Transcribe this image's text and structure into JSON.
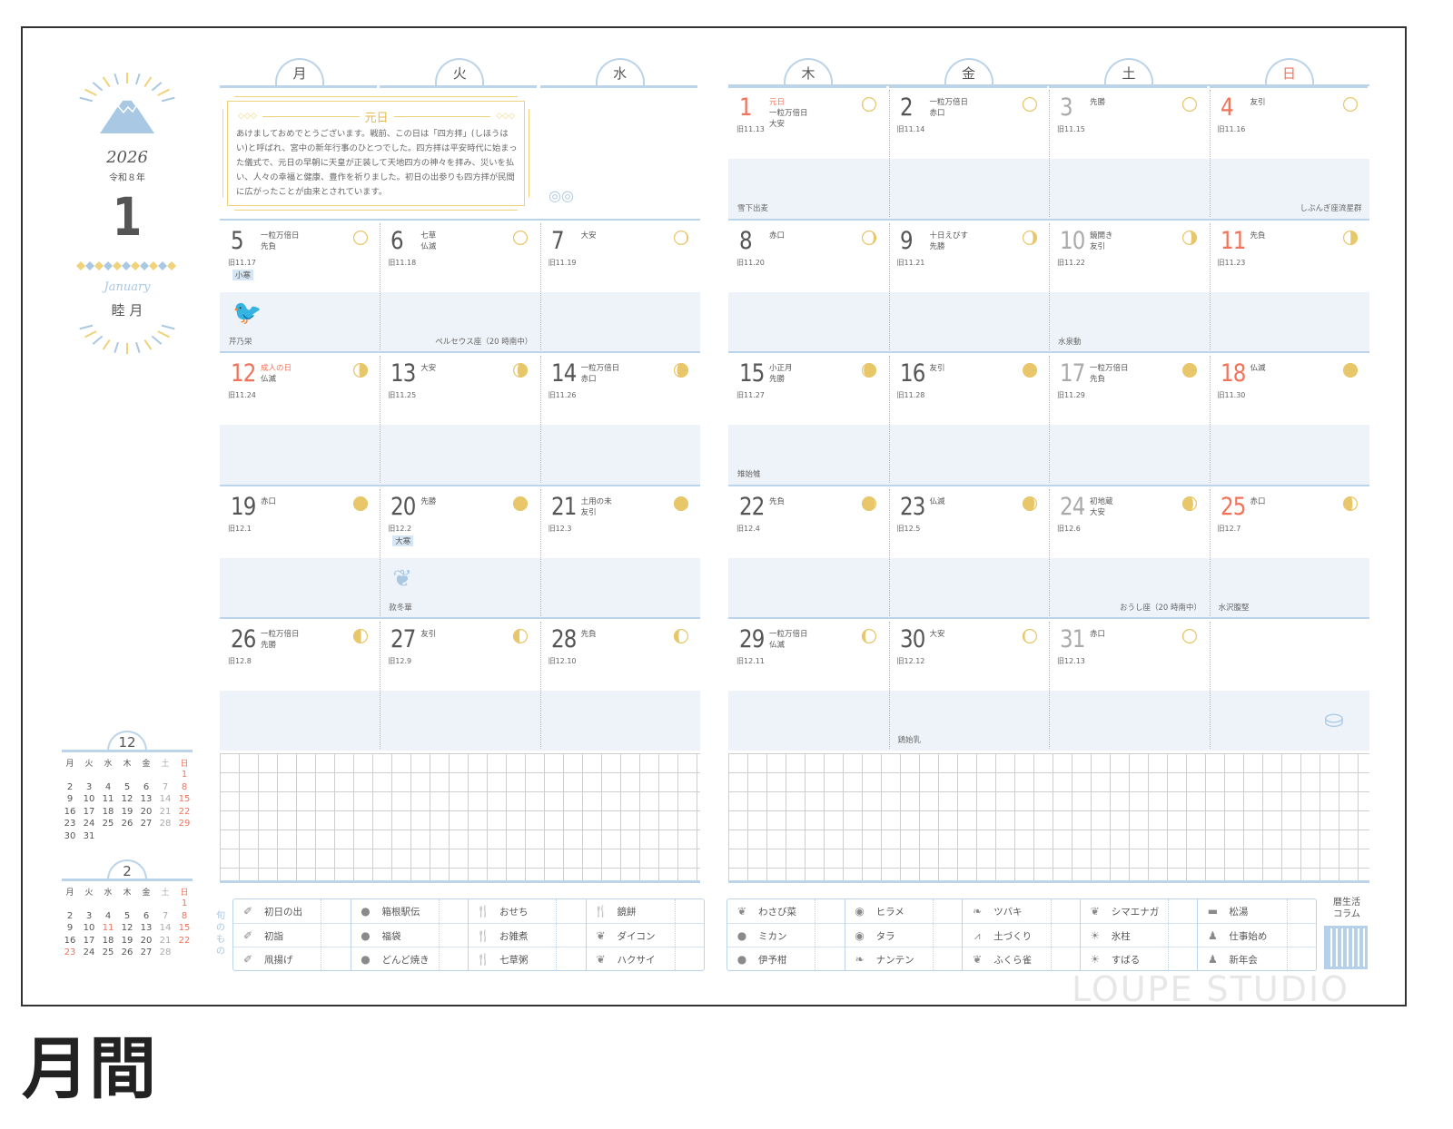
{
  "page_title": "月間",
  "watermark": "LOUPE STUDIO",
  "side": {
    "year": "2026",
    "era": "令和８年",
    "month": "1",
    "month_en": "January",
    "month_jp": "睦 月"
  },
  "weekdays": [
    "月",
    "火",
    "水",
    "木",
    "金",
    "土",
    "日"
  ],
  "colors": {
    "holiday": "#f0735a",
    "saturday": "#aaaaaa",
    "accent_blue": "#bcd4ea",
    "band": "#eef3f9",
    "moon": "#e8c66a",
    "gold": "#f0d27a"
  },
  "featured": {
    "title": "元日",
    "text": "あけましておめでとうございます。戦前、この日は「四方拝」(しほうはい)と呼ばれ、宮中の新年行事のひとつでした。四方拝は平安時代に始まった儀式で、元日の早朝に天皇が正装して天地四方の神々を拝み、災いを払い、人々の幸福と健康、豊作を祈りました。初日の出参りも四方拝が民間に広がったことが由来とされています。"
  },
  "days": [
    {
      "d": "1",
      "type": "red",
      "holiday": "元日",
      "notes": [
        "一粒万倍日",
        "大安"
      ],
      "old": "旧11.13",
      "foot_left": "雪下出麦"
    },
    {
      "d": "2",
      "notes": [
        "一粒万倍日",
        "赤口"
      ],
      "old": "旧11.14"
    },
    {
      "d": "3",
      "type": "sat",
      "notes": [
        "先勝"
      ],
      "old": "旧11.15"
    },
    {
      "d": "4",
      "type": "red",
      "notes": [
        "友引"
      ],
      "old": "旧11.16",
      "foot_right": "しぶんぎ座流星群"
    },
    {
      "d": "5",
      "notes": [
        "一粒万倍日",
        "先負"
      ],
      "old": "旧11.17",
      "badge": "小寒",
      "foot_left": "芹乃栄",
      "illus": "bird"
    },
    {
      "d": "6",
      "notes": [
        "七草",
        "仏滅"
      ],
      "old": "旧11.18",
      "foot_right": "ペルセウス座（20 時南中）"
    },
    {
      "d": "7",
      "notes": [
        "大安"
      ],
      "old": "旧11.19"
    },
    {
      "d": "8",
      "notes": [
        "赤口"
      ],
      "old": "旧11.20"
    },
    {
      "d": "9",
      "notes": [
        "十日えびす",
        "先勝"
      ],
      "old": "旧11.21"
    },
    {
      "d": "10",
      "type": "sat",
      "notes": [
        "鏡開き",
        "友引"
      ],
      "old": "旧11.22",
      "foot_left": "水泉動"
    },
    {
      "d": "11",
      "type": "red",
      "notes": [
        "先負"
      ],
      "old": "旧11.23"
    },
    {
      "d": "12",
      "type": "red",
      "holiday": "成人の日",
      "notes": [
        "仏滅"
      ],
      "old": "旧11.24"
    },
    {
      "d": "13",
      "notes": [
        "大安"
      ],
      "old": "旧11.25"
    },
    {
      "d": "14",
      "notes": [
        "一粒万倍日",
        "赤口"
      ],
      "old": "旧11.26"
    },
    {
      "d": "15",
      "notes": [
        "小正月",
        "先勝"
      ],
      "old": "旧11.27",
      "foot_left": "雉始雊"
    },
    {
      "d": "16",
      "notes": [
        "友引"
      ],
      "old": "旧11.28"
    },
    {
      "d": "17",
      "type": "sat",
      "notes": [
        "一粒万倍日",
        "先負"
      ],
      "old": "旧11.29"
    },
    {
      "d": "18",
      "type": "red",
      "notes": [
        "仏滅"
      ],
      "old": "旧11.30"
    },
    {
      "d": "19",
      "notes": [
        "赤口"
      ],
      "old": "旧12.1"
    },
    {
      "d": "20",
      "notes": [
        "先勝"
      ],
      "old": "旧12.2",
      "badge": "大寒",
      "foot_left": "款冬華",
      "illus": "plant"
    },
    {
      "d": "21",
      "notes": [
        "土用の未",
        "友引"
      ],
      "old": "旧12.3"
    },
    {
      "d": "22",
      "notes": [
        "先負"
      ],
      "old": "旧12.4"
    },
    {
      "d": "23",
      "notes": [
        "仏滅"
      ],
      "old": "旧12.5"
    },
    {
      "d": "24",
      "type": "sat",
      "notes": [
        "初地蔵",
        "大安"
      ],
      "old": "旧12.6",
      "foot_right": "おうし座（20 時南中）"
    },
    {
      "d": "25",
      "type": "red",
      "notes": [
        "赤口"
      ],
      "old": "旧12.7",
      "foot_left": "水沢腹堅"
    },
    {
      "d": "26",
      "notes": [
        "一粒万倍日",
        "先勝"
      ],
      "old": "旧12.8"
    },
    {
      "d": "27",
      "notes": [
        "友引"
      ],
      "old": "旧12.9"
    },
    {
      "d": "28",
      "notes": [
        "先負"
      ],
      "old": "旧12.10"
    },
    {
      "d": "29",
      "notes": [
        "一粒万倍日",
        "仏滅"
      ],
      "old": "旧12.11"
    },
    {
      "d": "30",
      "notes": [
        "大安"
      ],
      "old": "旧12.12",
      "foot_left": "鶏始乳"
    },
    {
      "d": "31",
      "type": "sat",
      "notes": [
        "赤口"
      ],
      "old": "旧12.13"
    }
  ],
  "mini_calendars": [
    {
      "month": "12",
      "rows": [
        [
          "",
          "",
          "",
          "",
          "",
          "",
          "1"
        ],
        [
          "2",
          "3",
          "4",
          "5",
          "6",
          "7",
          "8"
        ],
        [
          "9",
          "10",
          "11",
          "12",
          "13",
          "14",
          "15"
        ],
        [
          "16",
          "17",
          "18",
          "19",
          "20",
          "21",
          "22"
        ],
        [
          "23",
          "24",
          "25",
          "26",
          "27",
          "28",
          "29"
        ],
        [
          "30",
          "31",
          "",
          "",
          "",
          "",
          ""
        ]
      ],
      "red": []
    },
    {
      "month": "2",
      "rows": [
        [
          "",
          "",
          "",
          "",
          "",
          "",
          "1"
        ],
        [
          "2",
          "3",
          "4",
          "5",
          "6",
          "7",
          "8"
        ],
        [
          "9",
          "10",
          "11",
          "12",
          "13",
          "14",
          "15"
        ],
        [
          "16",
          "17",
          "18",
          "19",
          "20",
          "21",
          "22"
        ],
        [
          "23",
          "24",
          "25",
          "26",
          "27",
          "28",
          ""
        ]
      ],
      "red": [
        "11",
        "23"
      ]
    }
  ],
  "legend_left": {
    "label": "旬のもの",
    "columns": [
      [
        {
          "icon": "sunrise-icon",
          "text": "初日の出"
        },
        {
          "icon": "sunrise-icon",
          "text": "初詣"
        },
        {
          "icon": "sunrise-icon",
          "text": "凧揚げ"
        }
      ],
      [
        {
          "icon": "fan-icon",
          "text": "箱根駅伝"
        },
        {
          "icon": "fan-icon",
          "text": "福袋"
        },
        {
          "icon": "fan-icon",
          "text": "どんど焼き"
        }
      ],
      [
        {
          "icon": "cutlery-icon",
          "text": "おせち"
        },
        {
          "icon": "cutlery-icon",
          "text": "お雑煮"
        },
        {
          "icon": "cutlery-icon",
          "text": "七草粥"
        }
      ],
      [
        {
          "icon": "cutlery-icon",
          "text": "鏡餅"
        },
        {
          "icon": "vegetable-icon",
          "text": "ダイコン"
        },
        {
          "icon": "vegetable-icon",
          "text": "ハクサイ"
        }
      ]
    ]
  },
  "legend_right": {
    "columns": [
      [
        {
          "icon": "vegetable-icon",
          "text": "わさび菜"
        },
        {
          "icon": "fruit-icon",
          "text": "ミカン"
        },
        {
          "icon": "fruit-icon",
          "text": "伊予柑"
        }
      ],
      [
        {
          "icon": "fish-icon",
          "text": "ヒラメ"
        },
        {
          "icon": "fish-icon",
          "text": "タラ"
        },
        {
          "icon": "leaf-icon",
          "text": "ナンテン"
        }
      ],
      [
        {
          "icon": "leaf-icon",
          "text": "ツバキ"
        },
        {
          "icon": "grass-icon",
          "text": "土づくり"
        },
        {
          "icon": "bird-icon",
          "text": "ふくら雀"
        }
      ],
      [
        {
          "icon": "bird-icon",
          "text": "シマエナガ"
        },
        {
          "icon": "sun-icon",
          "text": "氷柱"
        },
        {
          "icon": "sun-icon",
          "text": "すばる"
        }
      ],
      [
        {
          "icon": "bath-icon",
          "text": "松湯"
        },
        {
          "icon": "person-icon",
          "text": "仕事始め"
        },
        {
          "icon": "person-icon",
          "text": "新年会"
        }
      ]
    ]
  },
  "column_label": "暦生活\nコラム"
}
